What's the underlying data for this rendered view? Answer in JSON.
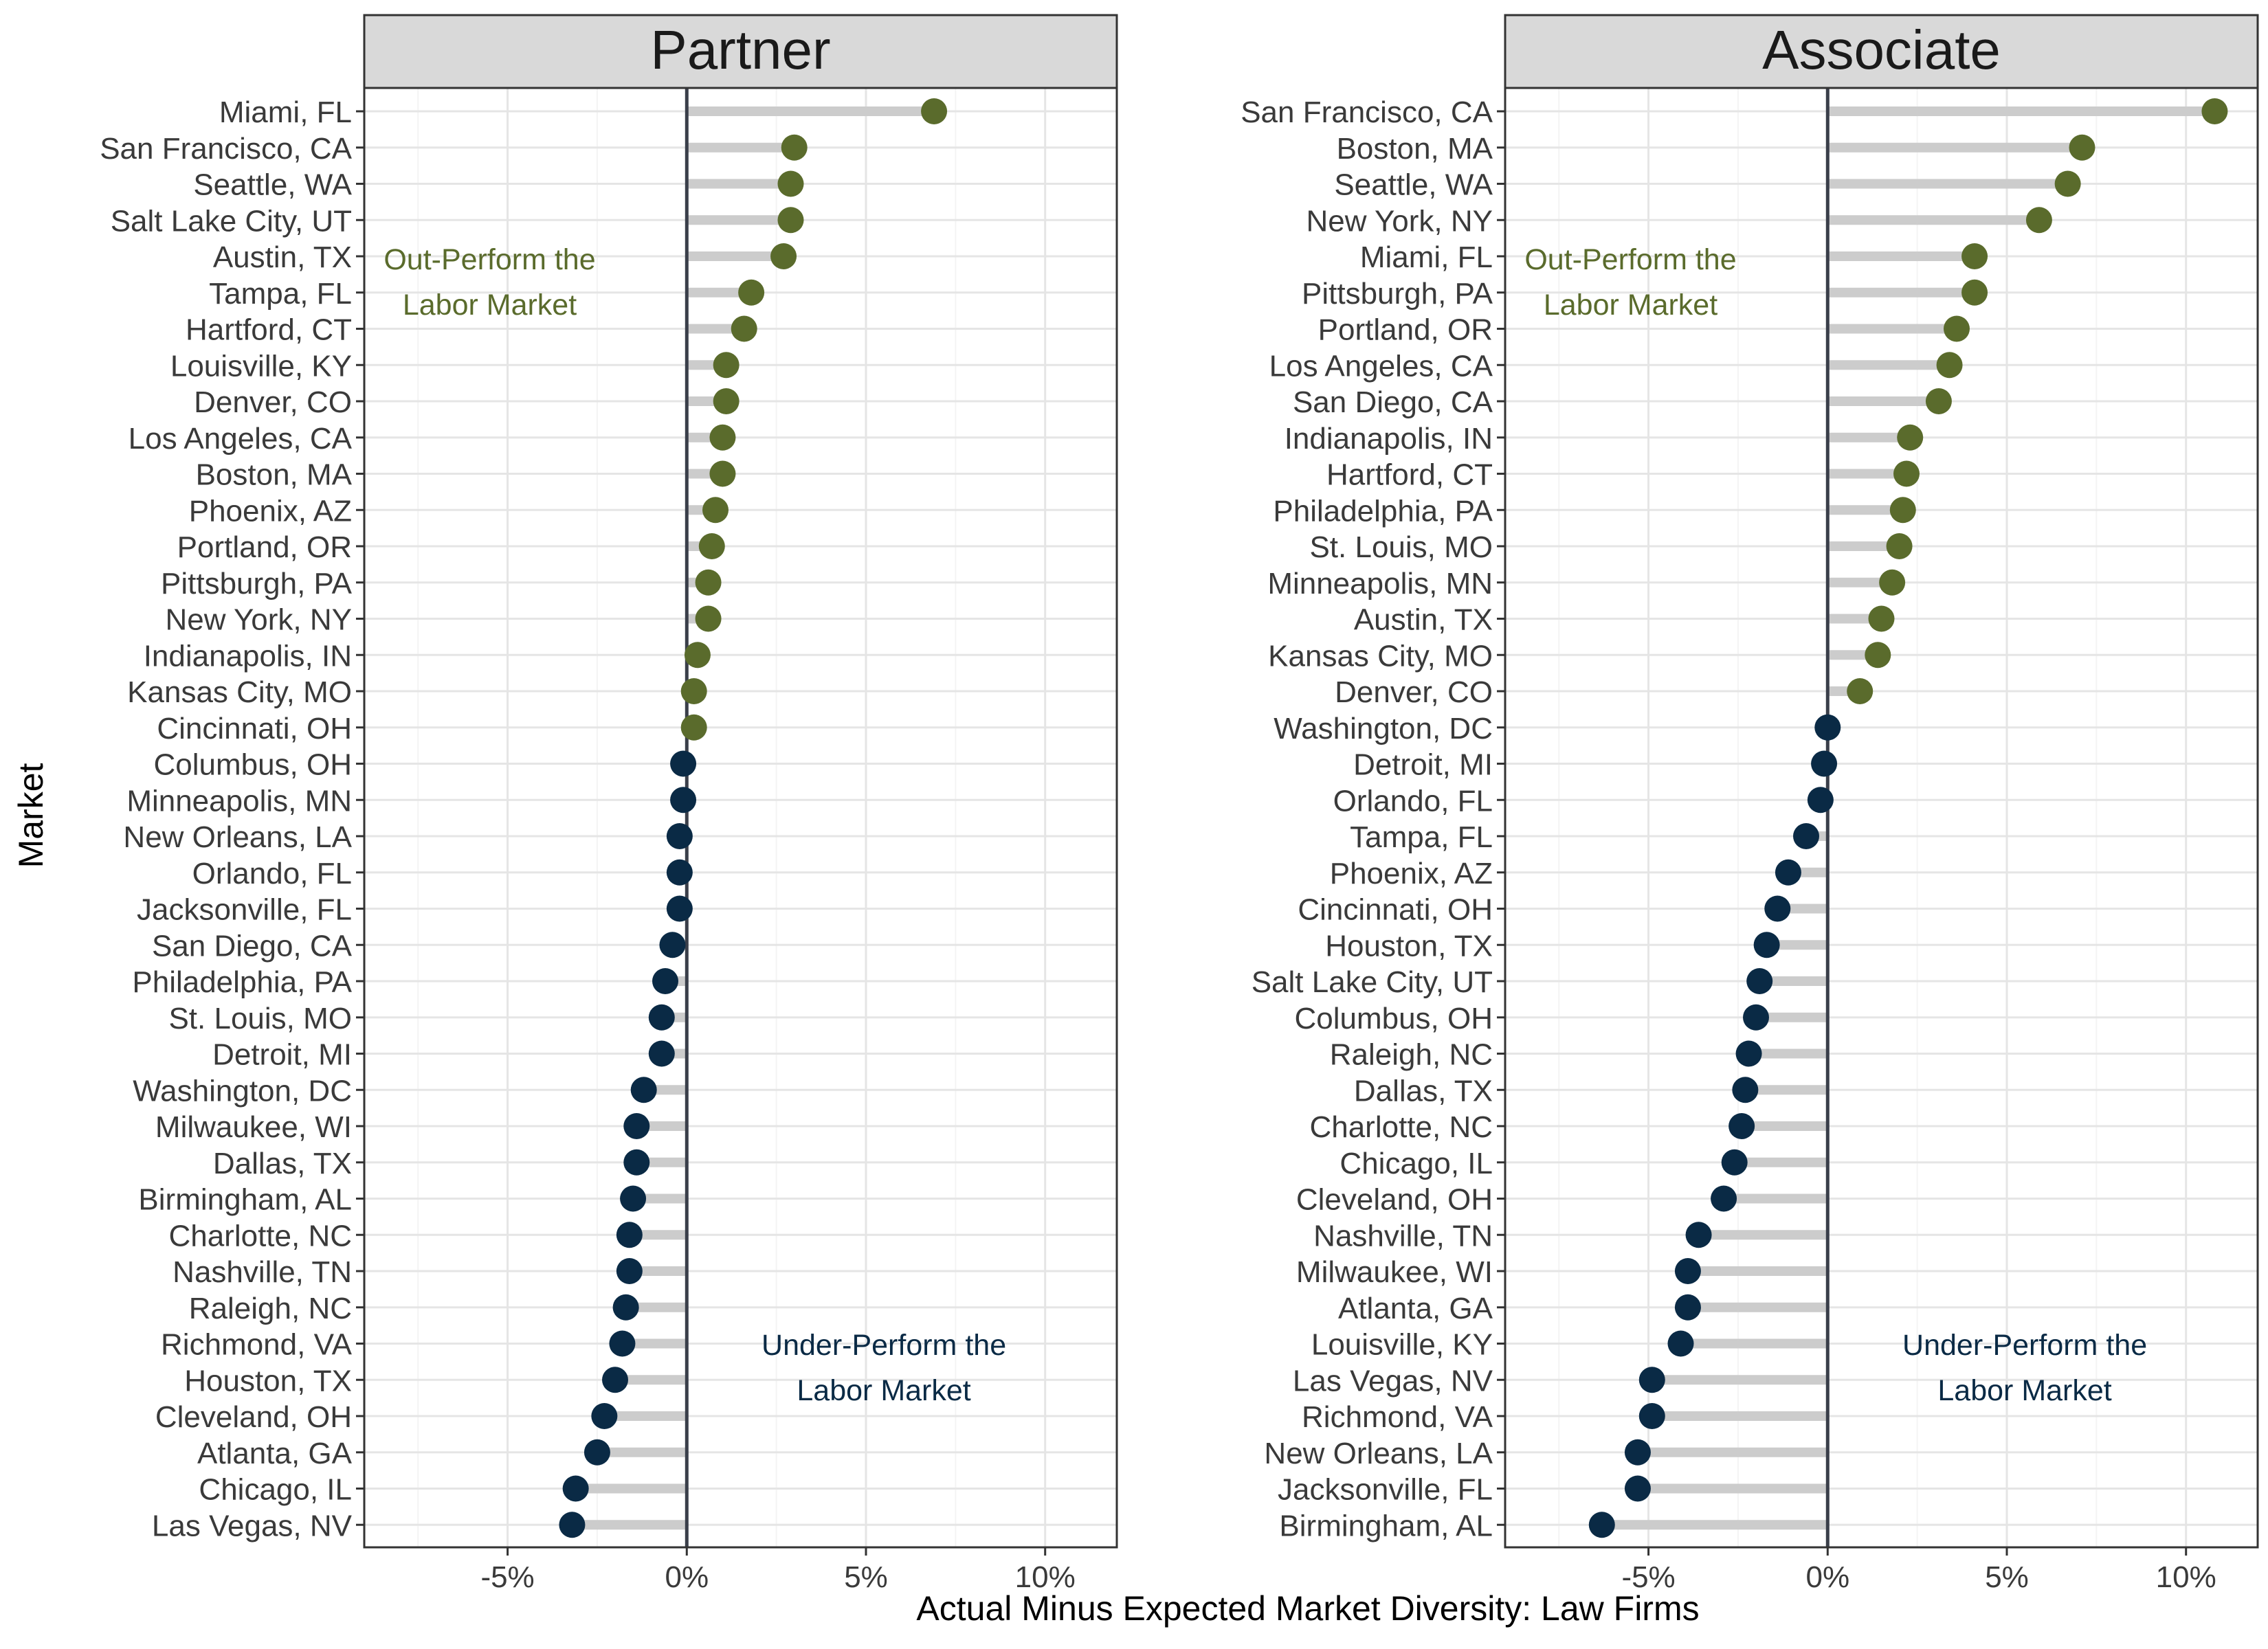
{
  "colors": {
    "above": "#5a6b2c",
    "below": "#0a2a45",
    "stem": "#cccccc",
    "zero_line": "#3a3f4a",
    "grid_major": "#e5e5e5",
    "grid_minor": "#f4f4f4",
    "strip_fill": "#d9d9d9",
    "panel_border": "#333333",
    "text": "#3a3a3a"
  },
  "chart_data": {
    "type": "scatter",
    "style": "lollipop",
    "xlabel": "Actual Minus Expected Market Diversity: Law Firms",
    "ylabel": "Market",
    "grid": true,
    "legend": "none",
    "facets": [
      {
        "title": "Partner",
        "xlim": [
          -9,
          12
        ],
        "xticks": [
          -5,
          0,
          5,
          10
        ],
        "xtick_labels": [
          "-5%",
          "0%",
          "5%",
          "10%"
        ],
        "annotations": [
          {
            "lines": [
              "Out-Perform the",
              "Labor Market"
            ],
            "group": "above"
          },
          {
            "lines": [
              "Under-Perform the",
              "Labor Market"
            ],
            "group": "below"
          }
        ],
        "markets": [
          "Miami, FL",
          "San Francisco, CA",
          "Seattle, WA",
          "Salt Lake City, UT",
          "Austin, TX",
          "Tampa, FL",
          "Hartford, CT",
          "Louisville, KY",
          "Denver, CO",
          "Los Angeles, CA",
          "Boston, MA",
          "Phoenix, AZ",
          "Portland, OR",
          "Pittsburgh, PA",
          "New York, NY",
          "Indianapolis, IN",
          "Kansas City, MO",
          "Cincinnati, OH",
          "Columbus, OH",
          "Minneapolis, MN",
          "New Orleans, LA",
          "Orlando, FL",
          "Jacksonville, FL",
          "San Diego, CA",
          "Philadelphia, PA",
          "St. Louis, MO",
          "Detroit, MI",
          "Washington, DC",
          "Milwaukee, WI",
          "Dallas, TX",
          "Birmingham, AL",
          "Charlotte, NC",
          "Nashville, TN",
          "Raleigh, NC",
          "Richmond, VA",
          "Houston, TX",
          "Cleveland, OH",
          "Atlanta, GA",
          "Chicago, IL",
          "Las Vegas, NV"
        ],
        "values": [
          6.9,
          3.0,
          2.9,
          2.9,
          2.7,
          1.8,
          1.6,
          1.1,
          1.1,
          1.0,
          1.0,
          0.8,
          0.7,
          0.6,
          0.6,
          0.3,
          0.2,
          0.2,
          -0.1,
          -0.1,
          -0.2,
          -0.2,
          -0.2,
          -0.4,
          -0.6,
          -0.7,
          -0.7,
          -1.2,
          -1.4,
          -1.4,
          -1.5,
          -1.6,
          -1.6,
          -1.7,
          -1.8,
          -2.0,
          -2.3,
          -2.5,
          -3.1,
          -3.2
        ]
      },
      {
        "title": "Associate",
        "xlim": [
          -9,
          12
        ],
        "xticks": [
          -5,
          0,
          5,
          10
        ],
        "xtick_labels": [
          "-5%",
          "0%",
          "5%",
          "10%"
        ],
        "annotations": [
          {
            "lines": [
              "Out-Perform the",
              "Labor Market"
            ],
            "group": "above"
          },
          {
            "lines": [
              "Under-Perform the",
              "Labor Market"
            ],
            "group": "below"
          }
        ],
        "markets": [
          "San Francisco, CA",
          "Boston, MA",
          "Seattle, WA",
          "New York, NY",
          "Miami, FL",
          "Pittsburgh, PA",
          "Portland, OR",
          "Los Angeles, CA",
          "San Diego, CA",
          "Indianapolis, IN",
          "Hartford, CT",
          "Philadelphia, PA",
          "St. Louis, MO",
          "Minneapolis, MN",
          "Austin, TX",
          "Kansas City, MO",
          "Denver, CO",
          "Washington, DC",
          "Detroit, MI",
          "Orlando, FL",
          "Tampa, FL",
          "Phoenix, AZ",
          "Cincinnati, OH",
          "Houston, TX",
          "Salt Lake City, UT",
          "Columbus, OH",
          "Raleigh, NC",
          "Dallas, TX",
          "Charlotte, NC",
          "Chicago, IL",
          "Cleveland, OH",
          "Nashville, TN",
          "Milwaukee, WI",
          "Atlanta, GA",
          "Louisville, KY",
          "Las Vegas, NV",
          "Richmond, VA",
          "New Orleans, LA",
          "Jacksonville, FL",
          "Birmingham, AL"
        ],
        "values": [
          10.8,
          7.1,
          6.7,
          5.9,
          4.1,
          4.1,
          3.6,
          3.4,
          3.1,
          2.3,
          2.2,
          2.1,
          2.0,
          1.8,
          1.5,
          1.4,
          0.9,
          0.0,
          -0.1,
          -0.2,
          -0.6,
          -1.1,
          -1.4,
          -1.7,
          -1.9,
          -2.0,
          -2.2,
          -2.3,
          -2.4,
          -2.6,
          -2.9,
          -3.6,
          -3.9,
          -3.9,
          -4.1,
          -4.9,
          -4.9,
          -5.3,
          -5.3,
          -6.3
        ]
      }
    ]
  }
}
